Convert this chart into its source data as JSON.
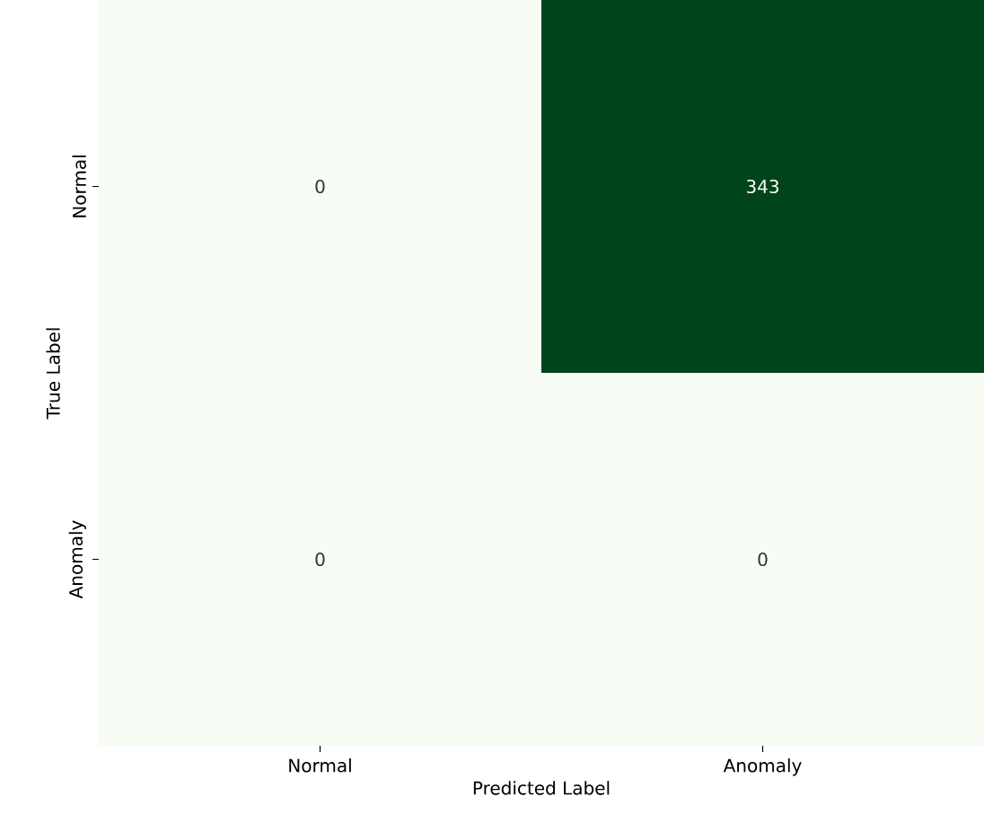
{
  "chart_data": {
    "type": "heatmap",
    "xlabel": "Predicted Label",
    "ylabel": "True Label",
    "categories": [
      "Normal",
      "Anomaly"
    ],
    "y_categories": [
      "Normal",
      "Anomaly"
    ],
    "cells": [
      [
        0,
        343
      ],
      [
        0,
        0
      ]
    ],
    "data_labels": true
  }
}
